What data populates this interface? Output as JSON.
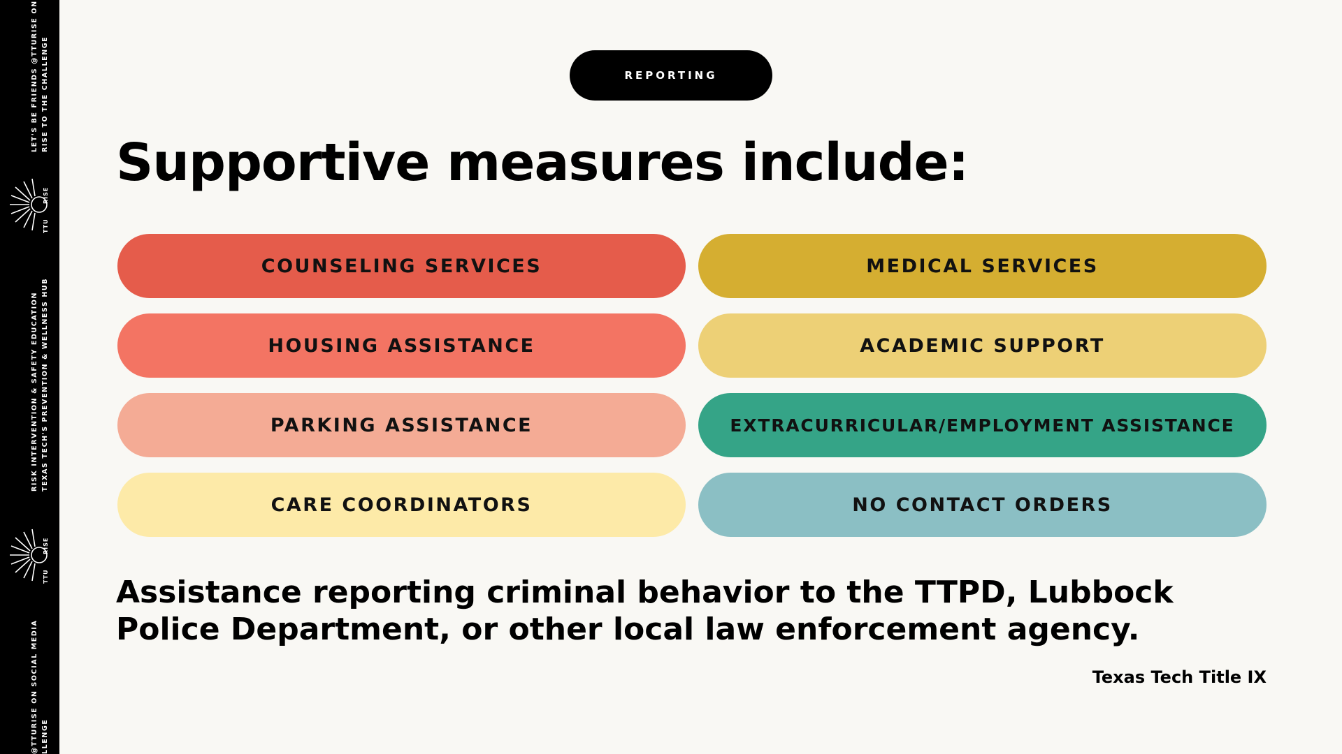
{
  "sidebar": {
    "block1": [
      "LET'S BE FRIENDS @TTURISE ON",
      "RISE TO THE CHALLENGE"
    ],
    "block2": [
      "RISK INTERVENTION & SAFETY EDUCATION",
      "TEXAS TECH'S PREVENTION & WELLNESS HUB"
    ],
    "block3": [
      "@TTURISE ON SOCIAL MEDIA",
      "LLENGE"
    ],
    "logo_text_top": "RISE",
    "logo_text_bottom": "TTU"
  },
  "header": {
    "tag": "REPORTING",
    "title": "Supportive measures include:"
  },
  "measures": [
    {
      "label": "COUNSELING SERVICES",
      "color": "#e55c4b"
    },
    {
      "label": "MEDICAL SERVICES",
      "color": "#d5ae31"
    },
    {
      "label": "HOUSING ASSISTANCE",
      "color": "#f37463"
    },
    {
      "label": "ACADEMIC SUPPORT",
      "color": "#edd076"
    },
    {
      "label": "PARKING ASSISTANCE",
      "color": "#f4ab95"
    },
    {
      "label": "EXTRACURRICULAR/EMPLOYMENT ASSISTANCE",
      "color": "#35a487"
    },
    {
      "label": "CARE COORDINATORS",
      "color": "#fdeaa8"
    },
    {
      "label": "NO CONTACT ORDERS",
      "color": "#8bbfc4"
    }
  ],
  "body": "Assistance reporting criminal behavior to the TTPD, Lubbock Police Department, or other local law enforcement agency.",
  "credit": "Texas Tech Title IX"
}
